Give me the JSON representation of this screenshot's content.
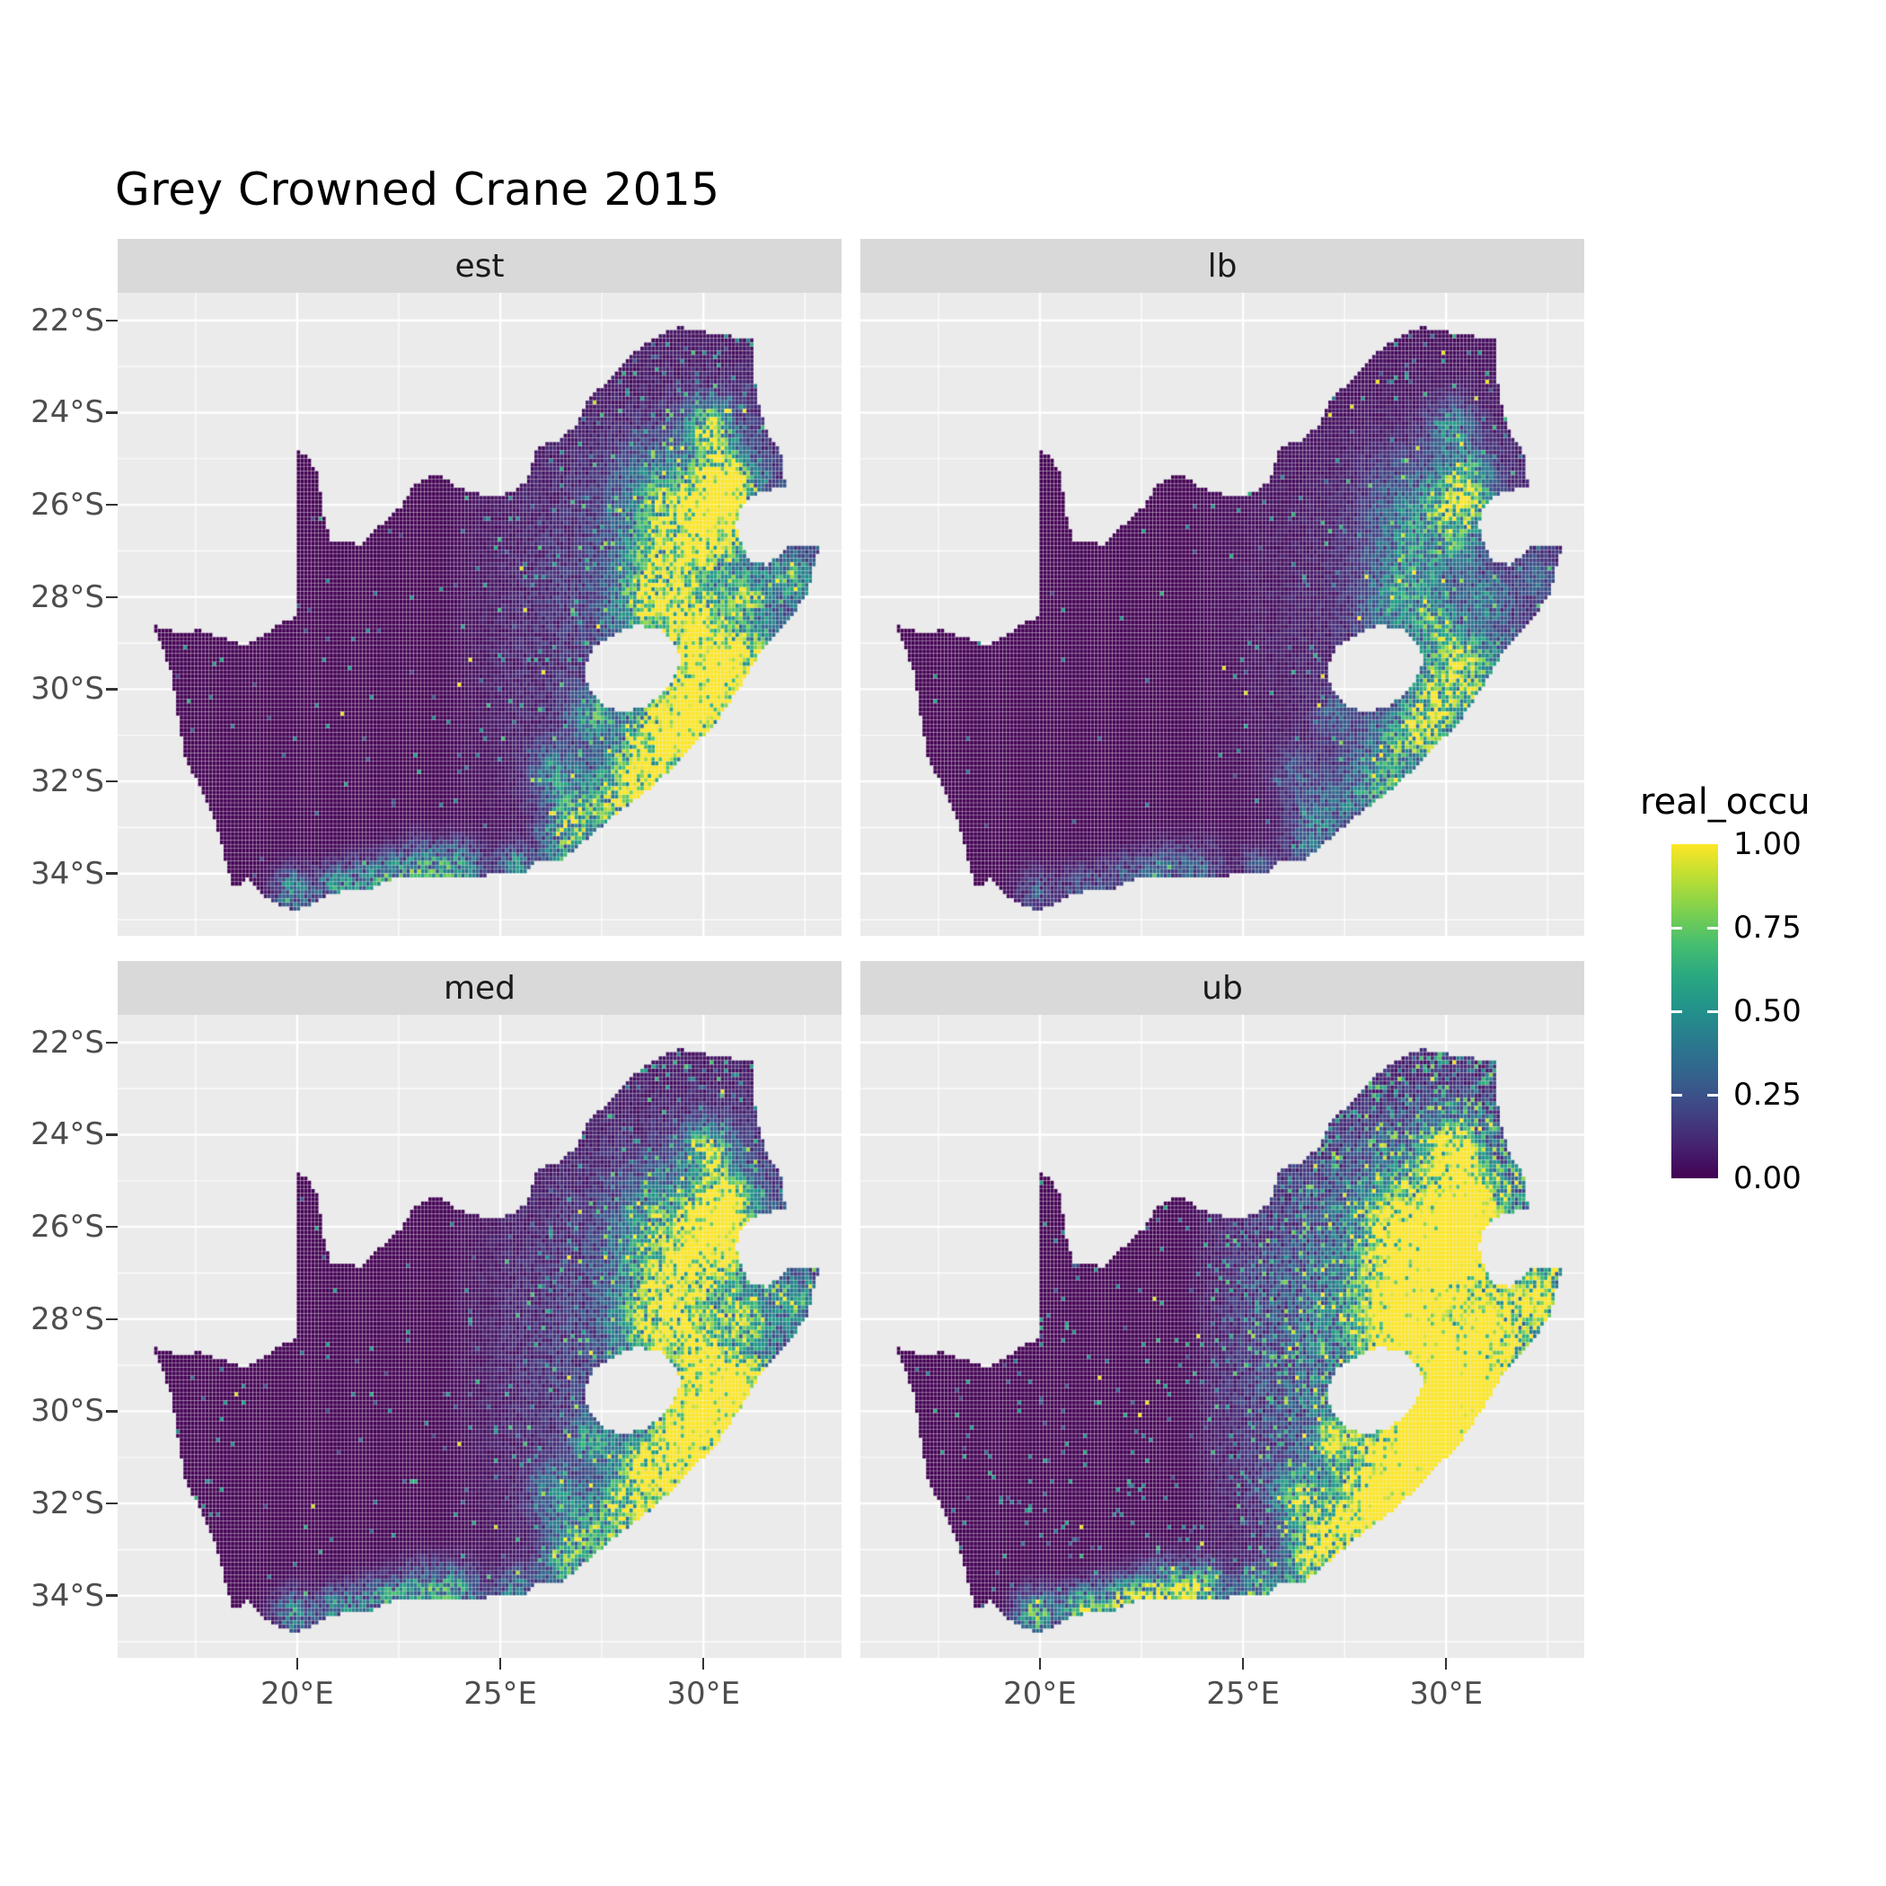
{
  "title": "Grey Crowned Crane 2015",
  "chart_data": {
    "type": "heatmap",
    "subtype": "faceted_raster_map",
    "title": "Grey Crowned Crane 2015",
    "region": "South Africa",
    "facets": [
      {
        "label": "est",
        "gain": 1.0,
        "wash": 0.35,
        "speckle": 0.05,
        "sparkle": 0.004
      },
      {
        "label": "lb",
        "gain": 0.5,
        "wash": 0.18,
        "speckle": 0.02,
        "sparkle": 0.003
      },
      {
        "label": "med",
        "gain": 0.95,
        "wash": 0.4,
        "speckle": 0.06,
        "sparkle": 0.004
      },
      {
        "label": "ub",
        "gain": 1.4,
        "wash": 0.8,
        "speckle": 0.18,
        "sparkle": 0.006
      }
    ],
    "x_domain": [
      15.58,
      33.4
    ],
    "y_domain": [
      -35.35,
      -21.4
    ],
    "x_ticks": [
      {
        "value": 20,
        "label": "20°E"
      },
      {
        "value": 25,
        "label": "25°E"
      },
      {
        "value": 30,
        "label": "30°E"
      }
    ],
    "y_ticks": [
      {
        "value": -22,
        "label": "22°S"
      },
      {
        "value": -24,
        "label": "24°S"
      },
      {
        "value": -26,
        "label": "26°S"
      },
      {
        "value": -28,
        "label": "28°S"
      },
      {
        "value": -30,
        "label": "30°S"
      },
      {
        "value": -32,
        "label": "32°S"
      },
      {
        "value": -34,
        "label": "34°S"
      }
    ],
    "x_minor": [
      17.5,
      22.5,
      27.5,
      32.5
    ],
    "y_minor": [
      -23,
      -25,
      -27,
      -29,
      -31,
      -33,
      -35
    ],
    "legend": {
      "title": "real_occu",
      "ticks": [
        {
          "value": 1.0,
          "label": "1.00"
        },
        {
          "value": 0.75,
          "label": "0.75"
        },
        {
          "value": 0.5,
          "label": "0.50"
        },
        {
          "value": 0.25,
          "label": "0.25"
        },
        {
          "value": 0.0,
          "label": "0.00"
        }
      ]
    },
    "colors": {
      "background": "#FFFFFF",
      "panel_bg": "#EBEBEB",
      "strip_bg": "#D9D9D9",
      "grid": "#FFFFFF",
      "axis_text": "#4D4D4D",
      "strip_text": "#1A1A1A",
      "tick_mark": "#333333",
      "viridis": [
        "#440154",
        "#46327E",
        "#365C8D",
        "#277F8E",
        "#1FA187",
        "#4AC16D",
        "#9FDA3A",
        "#FDE725"
      ]
    },
    "cell_size_deg": 0.09,
    "boundary_south_africa": [
      [
        16.45,
        -28.6
      ],
      [
        17.1,
        -28.78
      ],
      [
        17.6,
        -28.72
      ],
      [
        18.2,
        -28.9
      ],
      [
        18.75,
        -29.05
      ],
      [
        19.3,
        -28.75
      ],
      [
        19.7,
        -28.5
      ],
      [
        19.98,
        -28.45
      ],
      [
        19.98,
        -24.77
      ],
      [
        20.3,
        -25.0
      ],
      [
        20.55,
        -25.4
      ],
      [
        20.6,
        -25.95
      ],
      [
        20.7,
        -26.4
      ],
      [
        20.85,
        -26.82
      ],
      [
        21.6,
        -26.85
      ],
      [
        22.1,
        -26.4
      ],
      [
        22.6,
        -26.0
      ],
      [
        22.9,
        -25.55
      ],
      [
        23.45,
        -25.32
      ],
      [
        24.0,
        -25.65
      ],
      [
        24.75,
        -25.82
      ],
      [
        25.35,
        -25.72
      ],
      [
        25.65,
        -25.48
      ],
      [
        25.9,
        -24.75
      ],
      [
        26.4,
        -24.62
      ],
      [
        26.85,
        -24.28
      ],
      [
        27.2,
        -23.68
      ],
      [
        27.8,
        -23.18
      ],
      [
        28.25,
        -22.72
      ],
      [
        28.9,
        -22.32
      ],
      [
        29.4,
        -22.15
      ],
      [
        29.9,
        -22.2
      ],
      [
        30.3,
        -22.32
      ],
      [
        31.2,
        -22.38
      ],
      [
        31.3,
        -23.6
      ],
      [
        31.55,
        -24.4
      ],
      [
        31.9,
        -24.8
      ],
      [
        31.97,
        -25.15
      ],
      [
        32.02,
        -25.62
      ],
      [
        31.4,
        -25.72
      ],
      [
        30.95,
        -26.0
      ],
      [
        30.8,
        -26.45
      ],
      [
        30.9,
        -26.8
      ],
      [
        31.15,
        -27.2
      ],
      [
        31.6,
        -27.32
      ],
      [
        31.97,
        -27.0
      ],
      [
        32.13,
        -26.85
      ],
      [
        32.89,
        -26.85
      ],
      [
        32.55,
        -27.95
      ],
      [
        32.05,
        -28.58
      ],
      [
        31.4,
        -29.2
      ],
      [
        30.95,
        -29.9
      ],
      [
        30.3,
        -30.75
      ],
      [
        29.5,
        -31.45
      ],
      [
        28.8,
        -32.1
      ],
      [
        28.0,
        -32.62
      ],
      [
        27.4,
        -33.05
      ],
      [
        26.5,
        -33.72
      ],
      [
        25.9,
        -33.75
      ],
      [
        25.65,
        -34.0
      ],
      [
        25.0,
        -34.0
      ],
      [
        24.2,
        -34.1
      ],
      [
        23.4,
        -34.1
      ],
      [
        22.55,
        -34.05
      ],
      [
        21.75,
        -34.35
      ],
      [
        20.9,
        -34.42
      ],
      [
        20.0,
        -34.82
      ],
      [
        19.4,
        -34.62
      ],
      [
        19.0,
        -34.35
      ],
      [
        18.8,
        -34.1
      ],
      [
        18.45,
        -34.32
      ],
      [
        18.3,
        -33.92
      ],
      [
        18.05,
        -33.1
      ],
      [
        17.85,
        -32.55
      ],
      [
        17.25,
        -31.5
      ],
      [
        17.05,
        -30.5
      ],
      [
        16.9,
        -29.6
      ]
    ],
    "hole_lesotho": [
      [
        27.05,
        -29.65
      ],
      [
        27.3,
        -29.1
      ],
      [
        27.75,
        -28.85
      ],
      [
        28.35,
        -28.6
      ],
      [
        28.95,
        -28.72
      ],
      [
        29.35,
        -29.05
      ],
      [
        29.45,
        -29.35
      ],
      [
        29.15,
        -29.95
      ],
      [
        28.65,
        -30.35
      ],
      [
        28.05,
        -30.52
      ],
      [
        27.55,
        -30.38
      ],
      [
        27.25,
        -30.05
      ]
    ],
    "hotspots": [
      [
        30.0,
        -29.9,
        0.55,
        1.25
      ],
      [
        29.45,
        -30.75,
        0.45,
        1.0
      ],
      [
        30.55,
        -29.35,
        0.4,
        0.9
      ],
      [
        29.8,
        -28.6,
        0.35,
        0.7
      ],
      [
        30.5,
        -25.55,
        0.45,
        1.2
      ],
      [
        30.25,
        -26.35,
        0.5,
        1.0
      ],
      [
        29.3,
        -27.1,
        0.8,
        0.55
      ],
      [
        28.8,
        -28.2,
        0.6,
        0.55
      ],
      [
        28.75,
        -31.35,
        0.55,
        0.85
      ],
      [
        27.9,
        -32.3,
        0.55,
        0.6
      ],
      [
        26.85,
        -32.85,
        0.45,
        0.55
      ],
      [
        30.9,
        -30.35,
        0.35,
        0.7
      ],
      [
        31.45,
        -29.35,
        0.35,
        0.55
      ],
      [
        30.15,
        -24.35,
        0.4,
        0.7
      ],
      [
        29.0,
        -25.8,
        0.7,
        0.35
      ],
      [
        31.0,
        -28.1,
        0.4,
        0.5
      ],
      [
        32.2,
        -27.6,
        0.3,
        0.35
      ],
      [
        27.3,
        -30.6,
        0.35,
        0.45
      ],
      [
        26.3,
        -31.8,
        0.4,
        0.35
      ],
      [
        23.1,
        -34.05,
        0.45,
        0.55
      ],
      [
        24.0,
        -33.95,
        0.4,
        0.45
      ],
      [
        22.2,
        -34.1,
        0.35,
        0.4
      ],
      [
        25.35,
        -33.85,
        0.3,
        0.4
      ],
      [
        19.9,
        -34.4,
        0.35,
        0.45
      ],
      [
        20.9,
        -34.25,
        0.3,
        0.35
      ],
      [
        21.5,
        -34.3,
        0.4,
        0.3
      ],
      [
        26.5,
        -33.6,
        0.4,
        0.35
      ],
      [
        28.6,
        -32.4,
        0.4,
        0.4
      ],
      [
        29.9,
        -31.2,
        0.4,
        0.45
      ]
    ]
  }
}
